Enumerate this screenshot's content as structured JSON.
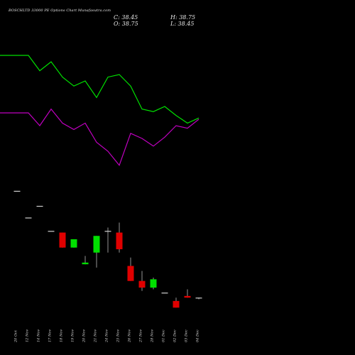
{
  "title": "BOSCHLTD 33000 PE Options Chart Munafasutra.com",
  "ohlc": {
    "open": "O: 38.75",
    "high": "H: 38.75",
    "low": "L: 38.45",
    "close": "C: 38.45"
  },
  "chart_data": {
    "type": "candlestick",
    "title": "BOSCHLTD 33000 PE Options Chart Munafasutra.com",
    "dates": [
      "20 Oct",
      "12 Nov",
      "14 Nov",
      "17 Nov",
      "18 Nov",
      "19 Nov",
      "20 Nov",
      "21 Nov",
      "24 Nov",
      "25 Nov",
      "26 Nov",
      "27 Nov",
      "28 Nov",
      "01 Dec",
      "02 Dec",
      "03 Dec",
      "04 Dec"
    ],
    "candles": [
      {
        "date": "20 Oct",
        "open": 46.2,
        "high": 46.2,
        "low": 46.2,
        "close": 46.2
      },
      {
        "date": "12 Nov",
        "open": 44.6,
        "high": 44.6,
        "low": 44.6,
        "close": 44.6
      },
      {
        "date": "14 Nov",
        "open": 45.3,
        "high": 45.3,
        "low": 45.3,
        "close": 45.3
      },
      {
        "date": "17 Nov",
        "open": 43.8,
        "high": 43.8,
        "low": 43.8,
        "close": 43.8
      },
      {
        "date": "18 Nov",
        "open": 43.7,
        "high": 43.7,
        "low": 42.8,
        "close": 42.8
      },
      {
        "date": "19 Nov",
        "open": 42.8,
        "high": 43.3,
        "low": 42.8,
        "close": 43.3
      },
      {
        "date": "20 Nov",
        "open": 41.8,
        "high": 42.3,
        "low": 41.8,
        "close": 41.9
      },
      {
        "date": "21 Nov",
        "open": 42.5,
        "high": 43.5,
        "low": 41.6,
        "close": 43.5
      },
      {
        "date": "24 Nov",
        "open": 43.8,
        "high": 44.0,
        "low": 42.5,
        "close": 43.8
      },
      {
        "date": "25 Nov",
        "open": 43.7,
        "high": 44.3,
        "low": 42.5,
        "close": 42.7
      },
      {
        "date": "26 Nov",
        "open": 41.7,
        "high": 42.2,
        "low": 40.8,
        "close": 40.8
      },
      {
        "date": "27 Nov",
        "open": 40.8,
        "high": 41.4,
        "low": 40.2,
        "close": 40.4
      },
      {
        "date": "28 Nov",
        "open": 40.4,
        "high": 41.0,
        "low": 40.3,
        "close": 40.9
      },
      {
        "date": "01 Dec",
        "open": 40.1,
        "high": 40.1,
        "low": 40.1,
        "close": 40.1
      },
      {
        "date": "02 Dec",
        "open": 39.6,
        "high": 39.8,
        "low": 39.2,
        "close": 39.2
      },
      {
        "date": "03 Dec",
        "open": 39.9,
        "high": 40.3,
        "low": 39.8,
        "close": 39.8
      },
      {
        "date": "04 Dec",
        "open": 39.8,
        "high": 39.8,
        "low": 39.7,
        "close": 39.8
      }
    ],
    "series": [
      {
        "color": "#00e000",
        "values": [
          90,
          90,
          78,
          85,
          73,
          66,
          70,
          57,
          73,
          75,
          66,
          48,
          46,
          50,
          43,
          37,
          41
        ]
      },
      {
        "color": "#c000c0",
        "values": [
          45,
          45,
          35,
          48,
          37,
          32,
          37,
          22,
          15,
          4,
          29,
          25,
          19,
          26,
          35,
          33,
          40
        ]
      }
    ],
    "colors": {
      "up": "#00e000",
      "down": "#e00000",
      "flat": "#d0d0d0",
      "background": "#000000"
    }
  }
}
